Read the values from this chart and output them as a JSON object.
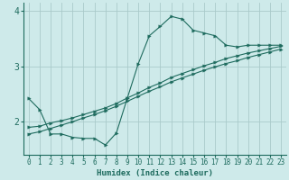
{
  "xlabel": "Humidex (Indice chaleur)",
  "ylabel": "",
  "bg_color": "#ceeaea",
  "grid_color": "#aacaca",
  "line_color": "#1e6b5e",
  "x_values": [
    0,
    1,
    2,
    3,
    4,
    5,
    6,
    7,
    8,
    9,
    10,
    11,
    12,
    13,
    14,
    15,
    16,
    17,
    18,
    19,
    20,
    21,
    22,
    23
  ],
  "curve1": [
    2.42,
    2.22,
    1.78,
    1.78,
    1.72,
    1.7,
    1.7,
    1.58,
    1.8,
    2.43,
    3.05,
    3.55,
    3.72,
    3.9,
    3.85,
    3.65,
    3.6,
    3.55,
    3.38,
    3.35,
    3.38,
    3.38,
    3.38,
    3.38
  ],
  "curve2": [
    1.9,
    1.92,
    1.98,
    2.02,
    2.07,
    2.13,
    2.19,
    2.25,
    2.33,
    2.43,
    2.52,
    2.62,
    2.7,
    2.8,
    2.87,
    2.94,
    3.01,
    3.07,
    3.14,
    3.19,
    3.24,
    3.28,
    3.32,
    3.36
  ],
  "curve3": [
    1.78,
    1.82,
    1.88,
    1.94,
    2.0,
    2.07,
    2.13,
    2.2,
    2.28,
    2.37,
    2.46,
    2.55,
    2.63,
    2.72,
    2.79,
    2.86,
    2.93,
    2.99,
    3.05,
    3.1,
    3.16,
    3.21,
    3.26,
    3.31
  ],
  "ylim": [
    1.4,
    4.15
  ],
  "xlim": [
    -0.5,
    23.5
  ],
  "yticks": [
    2,
    3,
    4
  ],
  "label_fontsize": 6.5,
  "tick_fontsize": 5.5
}
